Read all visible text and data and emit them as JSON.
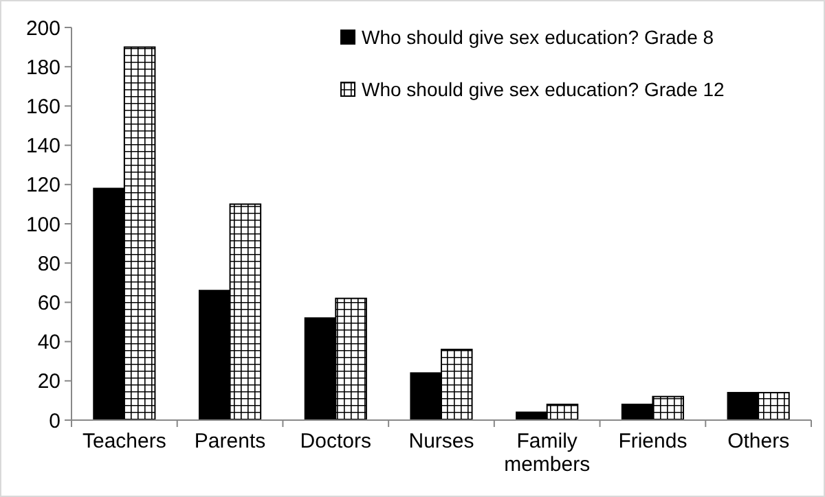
{
  "chart_data": {
    "type": "bar",
    "categories": [
      "Teachers",
      "Parents",
      "Doctors",
      "Nurses",
      "Family members",
      "Friends",
      "Others"
    ],
    "series": [
      {
        "name": "Who should give sex education? Grade 8",
        "color": "#000000",
        "values": [
          118,
          66,
          52,
          24,
          4,
          8,
          14
        ]
      },
      {
        "name": "Who should give sex education? Grade 12",
        "color": "#000000",
        "values": [
          190,
          110,
          62,
          36,
          8,
          12,
          14
        ]
      }
    ],
    "ylim": [
      0,
      200
    ],
    "yticks": [
      0,
      20,
      40,
      60,
      80,
      100,
      120,
      140,
      160,
      180,
      200
    ],
    "grid": false,
    "legend": "top right"
  }
}
